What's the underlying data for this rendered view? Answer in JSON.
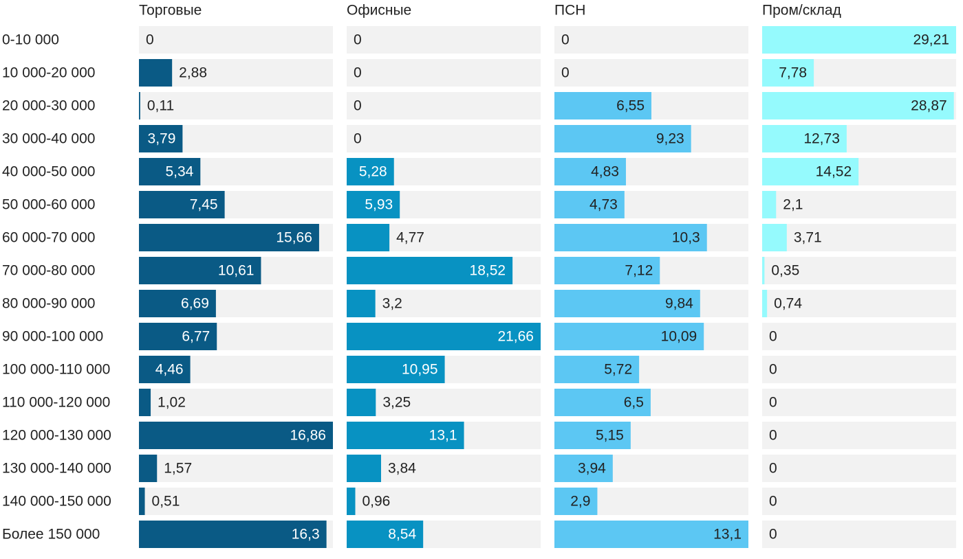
{
  "chart_data": {
    "type": "bar",
    "orientation": "horizontal",
    "categories": [
      "0-10 000",
      "10 000-20 000",
      "20 000-30 000",
      "30 000-40 000",
      "40 000-50 000",
      "50 000-60 000",
      "60 000-70 000",
      "70 000-80 000",
      "80 000-90 000",
      "90 000-100 000",
      "100 000-110 000",
      "110 000-120 000",
      "120 000-130 000",
      "130 000-140 000",
      "140 000-150 000",
      "Более 150 000"
    ],
    "series": [
      {
        "name": "Торговые",
        "color": "#0a5a85",
        "label_color": "#ffffff",
        "xlim": [
          0,
          16.86
        ],
        "values": [
          0,
          2.88,
          0.11,
          3.79,
          5.34,
          7.45,
          15.66,
          10.61,
          6.69,
          6.77,
          4.46,
          1.02,
          16.86,
          1.57,
          0.51,
          16.3
        ],
        "value_labels": [
          "0",
          "2,88",
          "0,11",
          "3,79",
          "5,34",
          "7,45",
          "15,66",
          "10,61",
          "6,69",
          "6,77",
          "4,46",
          "1,02",
          "16,86",
          "1,57",
          "0,51",
          "16,3"
        ]
      },
      {
        "name": "Офисные",
        "color": "#0892c2",
        "label_color": "#ffffff",
        "xlim": [
          0,
          21.66
        ],
        "values": [
          0,
          0,
          0,
          0,
          5.28,
          5.93,
          4.77,
          18.52,
          3.2,
          21.66,
          10.95,
          3.25,
          13.1,
          3.84,
          0.96,
          8.54
        ],
        "value_labels": [
          "0",
          "0",
          "0",
          "0",
          "5,28",
          "5,93",
          "4,77",
          "18,52",
          "3,2",
          "21,66",
          "10,95",
          "3,25",
          "13,1",
          "3,84",
          "0,96",
          "8,54"
        ]
      },
      {
        "name": "ПСН",
        "color": "#5cc7f3",
        "label_color": "#222222",
        "xlim": [
          0,
          13.1
        ],
        "values": [
          0,
          0,
          6.55,
          9.23,
          4.83,
          4.73,
          10.3,
          7.12,
          9.84,
          10.09,
          5.72,
          6.5,
          5.15,
          3.94,
          2.9,
          13.1
        ],
        "value_labels": [
          "0",
          "0",
          "6,55",
          "9,23",
          "4,83",
          "4,73",
          "10,3",
          "7,12",
          "9,84",
          "10,09",
          "5,72",
          "6,5",
          "5,15",
          "3,94",
          "2,9",
          "13,1"
        ]
      },
      {
        "name": "Пром/склад",
        "color": "#95fafd",
        "label_color": "#222222",
        "xlim": [
          0,
          29.21
        ],
        "values": [
          29.21,
          7.78,
          28.87,
          12.73,
          14.52,
          2.1,
          3.71,
          0.35,
          0.74,
          0,
          0,
          0,
          0,
          0,
          0,
          0
        ],
        "value_labels": [
          "29,21",
          "7,78",
          "28,87",
          "12,73",
          "14,52",
          "2,1",
          "3,71",
          "0,35",
          "0,74",
          "0",
          "0",
          "0",
          "0",
          "0",
          "0",
          "0"
        ]
      }
    ]
  }
}
